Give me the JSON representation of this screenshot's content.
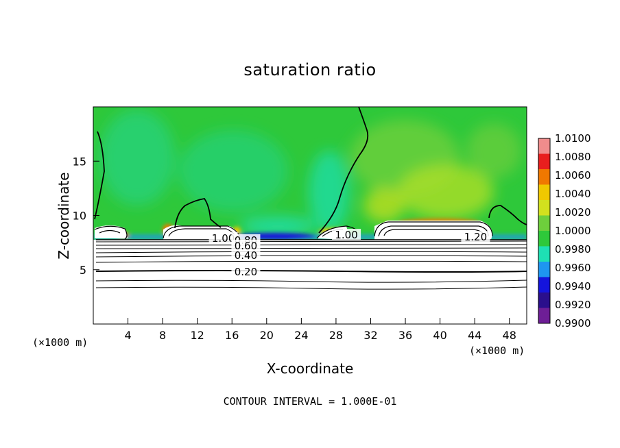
{
  "chart_data": {
    "type": "heatmap",
    "title": "saturation ratio",
    "xlabel": "X-coordinate",
    "ylabel": "Z-coordinate",
    "x_unit": "(×1000 m)",
    "xlim": [
      0,
      50
    ],
    "ylim": [
      0,
      20
    ],
    "x_ticks": [
      4,
      8,
      12,
      16,
      20,
      24,
      28,
      32,
      36,
      40,
      44,
      48
    ],
    "y_ticks": [
      5,
      10,
      15
    ],
    "colorbar": {
      "levels": [
        "1.0100",
        "1.0080",
        "1.0060",
        "1.0040",
        "1.0020",
        "1.0000",
        "0.9980",
        "0.9960",
        "0.9940",
        "0.9920",
        "0.9900"
      ],
      "colors": [
        "#f08c8c",
        "#e81e1e",
        "#f07800",
        "#f0c800",
        "#d2e11e",
        "#6ecf3c",
        "#2ec83a",
        "#1ee0b4",
        "#1e96f0",
        "#1414dc",
        "#2a0f8c",
        "#6e1e96"
      ]
    },
    "contour_labels": [
      {
        "text": "1.00",
        "x": 15.0,
        "y": 7.9
      },
      {
        "text": "0.80",
        "x": 17.6,
        "y": 7.7
      },
      {
        "text": "0.60",
        "x": 17.6,
        "y": 7.2
      },
      {
        "text": "0.40",
        "x": 17.6,
        "y": 6.3
      },
      {
        "text": "0.20",
        "x": 17.6,
        "y": 4.8
      },
      {
        "text": "1.00",
        "x": 29.2,
        "y": 8.2
      },
      {
        "text": "1.20",
        "x": 44.1,
        "y": 8.0
      }
    ],
    "contour_interval_text": "CONTOUR INTERVAL =  1.000E-01"
  }
}
